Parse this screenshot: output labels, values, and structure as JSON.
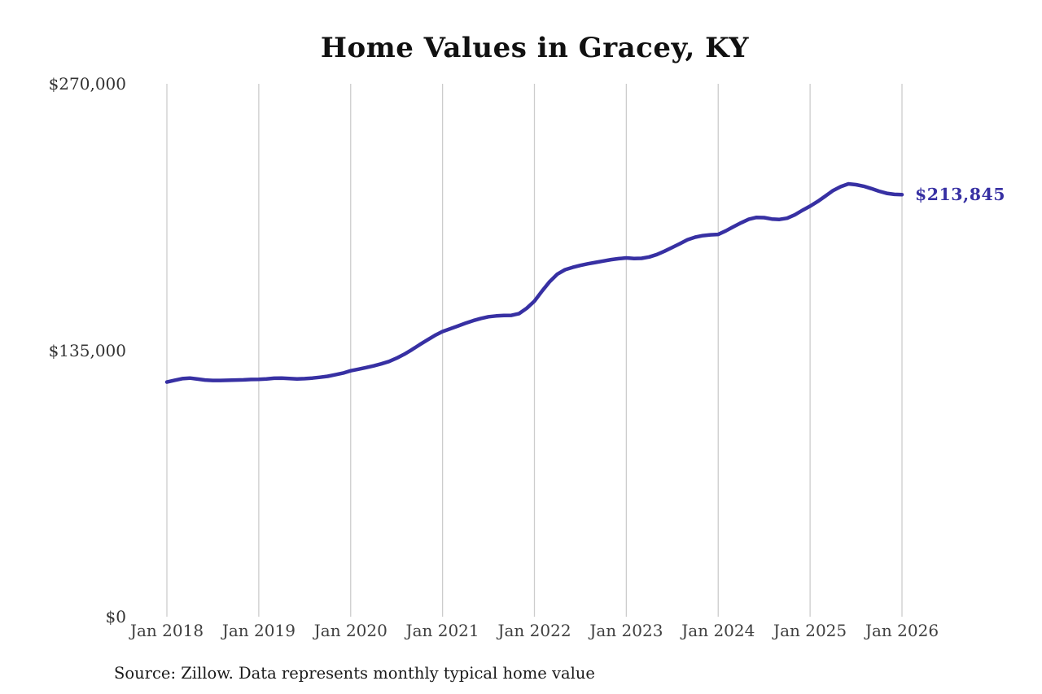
{
  "chart_data": {
    "type": "line",
    "title": "Home Values in Gracey, KY",
    "xlabel": "",
    "ylabel": "",
    "ylim": [
      0,
      270000
    ],
    "grid": "vertical-only",
    "gridline_color": "#cccccc",
    "legend": "none",
    "end_label": "$213,845",
    "end_value": 213845,
    "frequency": "monthly",
    "x_start_month": "Jan 2018",
    "x_end_month": "Jan 2026",
    "x_ticks": [
      "Jan 2018",
      "Jan 2019",
      "Jan 2020",
      "Jan 2021",
      "Jan 2022",
      "Jan 2023",
      "Jan 2024",
      "Jan 2025",
      "Jan 2026"
    ],
    "x_tick_indices": [
      0,
      12,
      24,
      36,
      48,
      60,
      72,
      84,
      96
    ],
    "y_ticks": [
      {
        "value": 0,
        "label": "$0"
      },
      {
        "value": 135000,
        "label": "$135,000"
      },
      {
        "value": 270000,
        "label": "$270,000"
      }
    ],
    "series": [
      {
        "name": "Monthly typical home value",
        "color": "#3730a3",
        "values": [
          118900,
          119800,
          120600,
          120900,
          120400,
          119900,
          119700,
          119700,
          119800,
          119900,
          120000,
          120200,
          120300,
          120500,
          120800,
          120900,
          120700,
          120500,
          120600,
          120900,
          121300,
          121800,
          122600,
          123400,
          124600,
          125400,
          126200,
          127100,
          128100,
          129300,
          131000,
          133000,
          135300,
          137800,
          140200,
          142500,
          144500,
          145900,
          147300,
          148700,
          150000,
          151100,
          152000,
          152400,
          152600,
          152700,
          153600,
          156300,
          159900,
          165000,
          169800,
          173600,
          175800,
          177000,
          178000,
          178800,
          179500,
          180200,
          180900,
          181400,
          181800,
          181500,
          181600,
          182300,
          183500,
          185200,
          187100,
          189000,
          191000,
          192300,
          193100,
          193500,
          193700,
          195500,
          197600,
          199600,
          201400,
          202300,
          202200,
          201500,
          201300,
          201900,
          203600,
          205900,
          208000,
          210400,
          213100,
          215900,
          217900,
          219300,
          218900,
          218100,
          216900,
          215600,
          214500,
          214000,
          213845
        ]
      }
    ]
  },
  "source_note": "Source: Zillow. Data represents monthly typical home value",
  "colors": {
    "line": "#3730a3",
    "end_label_text": "#3730a3",
    "axis_text": "#404040",
    "title_text": "#111111",
    "gridline": "#cccccc",
    "background": "#ffffff"
  }
}
